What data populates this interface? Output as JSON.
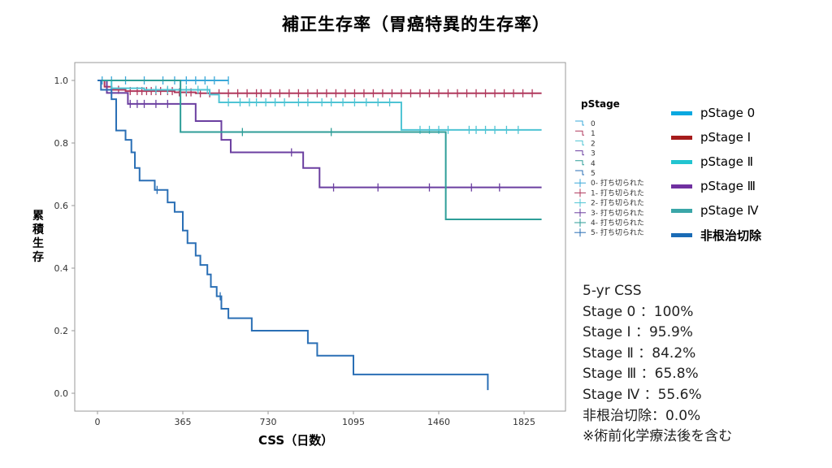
{
  "title": "補正生存率（胃癌特異的生存率）",
  "colors": {
    "s0": "#3aa8d8",
    "s1": "#b0395d",
    "s2": "#4fc4d4",
    "s3": "#6b3fa0",
    "s4": "#2e9e98",
    "s5": "#2a6fb5",
    "legend_s0": "#0aa8e0",
    "legend_s1": "#a61c1c",
    "legend_s2": "#22c4d0",
    "legend_s3": "#7030a0",
    "legend_s4": "#3aa6a8",
    "legend_s5": "#1a6bb5"
  },
  "legend_inner": {
    "title": "pStage",
    "items": [
      "0",
      "1",
      "2",
      "3",
      "4",
      "5",
      "0- 打ち切られた",
      "1- 打ち切られた",
      "2- 打ち切られた",
      "3- 打ち切られた",
      "4- 打ち切られた",
      "5- 打ち切られた"
    ]
  },
  "legend_outer": [
    {
      "label": "pStage 0",
      "color_key": "legend_s0",
      "bold": false
    },
    {
      "label": "pStage Ⅰ",
      "color_key": "legend_s1",
      "bold": false
    },
    {
      "label": "pStage Ⅱ",
      "color_key": "legend_s2",
      "bold": false
    },
    {
      "label": "pStage Ⅲ",
      "color_key": "legend_s3",
      "bold": false
    },
    {
      "label": "pStage Ⅳ",
      "color_key": "legend_s4",
      "bold": false
    },
    {
      "label": "非根治切除",
      "color_key": "legend_s5",
      "bold": true
    }
  ],
  "stats": {
    "header": "5-yr CSS",
    "lines": [
      "Stage 0 ：100%",
      "Stage Ⅰ ：95.9%",
      "Stage Ⅱ ：84.2%",
      "Stage Ⅲ ：65.8%",
      "Stage Ⅳ ：55.6%",
      "非根治切除：0.0%",
      "※術前化学療法後を含む"
    ]
  },
  "chart_data": {
    "type": "line",
    "title": "補正生存率（胃癌特異的生存率）",
    "xlabel": "CSS（日数）",
    "ylabel": "累積生存",
    "xlim": [
      0,
      1900
    ],
    "ylim": [
      0,
      1.0
    ],
    "x_ticks": [
      0,
      365,
      730,
      1095,
      1460,
      1825
    ],
    "y_ticks": [
      0.0,
      0.2,
      0.4,
      0.6,
      0.8,
      1.0
    ],
    "y_tick_labels": [
      "0.0",
      "0.2",
      "0.4",
      "0.6",
      "0.8",
      "1.0"
    ],
    "grid": false,
    "series": [
      {
        "name": "0",
        "key": "s0",
        "steps": [
          [
            0,
            1.0
          ],
          [
            560,
            1.0
          ]
        ],
        "censored": [
          20,
          60,
          120,
          200,
          280,
          330,
          380,
          420,
          460,
          500,
          560
        ]
      },
      {
        "name": "1",
        "key": "s1",
        "steps": [
          [
            0,
            1.0
          ],
          [
            30,
            0.98
          ],
          [
            60,
            0.97
          ],
          [
            120,
            0.966
          ],
          [
            330,
            0.962
          ],
          [
            420,
            0.959
          ],
          [
            1900,
            0.959
          ]
        ],
        "censored": [
          90,
          140,
          170,
          190,
          210,
          230,
          250,
          270,
          300,
          320,
          350,
          380,
          400,
          440,
          480,
          520,
          560,
          600,
          640,
          680,
          700,
          740,
          780,
          820,
          860,
          900,
          940,
          980,
          1020,
          1060,
          1100,
          1140,
          1180,
          1220,
          1260,
          1300,
          1340,
          1380,
          1420,
          1460,
          1500,
          1540,
          1580,
          1620,
          1660,
          1700,
          1740,
          1780,
          1820,
          1860
        ]
      },
      {
        "name": "2",
        "key": "s2",
        "steps": [
          [
            0,
            1.0
          ],
          [
            60,
            0.975
          ],
          [
            200,
            0.97
          ],
          [
            480,
            0.955
          ],
          [
            520,
            0.93
          ],
          [
            1300,
            0.842
          ],
          [
            1900,
            0.842
          ]
        ],
        "censored": [
          250,
          300,
          380,
          430,
          470,
          560,
          610,
          650,
          680,
          720,
          760,
          800,
          860,
          900,
          960,
          1000,
          1050,
          1100,
          1150,
          1200,
          1250,
          1380,
          1420,
          1460,
          1500,
          1590,
          1620,
          1660,
          1700,
          1750,
          1800
        ]
      },
      {
        "name": "3",
        "key": "s3",
        "steps": [
          [
            0,
            1.0
          ],
          [
            40,
            0.96
          ],
          [
            130,
            0.925
          ],
          [
            420,
            0.87
          ],
          [
            530,
            0.81
          ],
          [
            570,
            0.77
          ],
          [
            880,
            0.72
          ],
          [
            950,
            0.658
          ],
          [
            1900,
            0.658
          ]
        ],
        "censored": [
          140,
          170,
          200,
          250,
          300,
          830,
          1010,
          1200,
          1420,
          1600,
          1720
        ]
      },
      {
        "name": "4",
        "key": "s4",
        "steps": [
          [
            0,
            1.0
          ],
          [
            355,
            0.835
          ],
          [
            1490,
            0.556
          ],
          [
            1900,
            0.556
          ]
        ],
        "censored": [
          620,
          1000
        ]
      },
      {
        "name": "5",
        "key": "s5",
        "steps": [
          [
            0,
            1.0
          ],
          [
            15,
            0.97
          ],
          [
            60,
            0.94
          ],
          [
            80,
            0.84
          ],
          [
            120,
            0.81
          ],
          [
            145,
            0.77
          ],
          [
            160,
            0.72
          ],
          [
            180,
            0.68
          ],
          [
            245,
            0.65
          ],
          [
            300,
            0.61
          ],
          [
            330,
            0.58
          ],
          [
            365,
            0.52
          ],
          [
            385,
            0.48
          ],
          [
            420,
            0.44
          ],
          [
            440,
            0.41
          ],
          [
            470,
            0.38
          ],
          [
            485,
            0.34
          ],
          [
            510,
            0.31
          ],
          [
            530,
            0.27
          ],
          [
            560,
            0.24
          ],
          [
            660,
            0.2
          ],
          [
            900,
            0.16
          ],
          [
            940,
            0.12
          ],
          [
            1095,
            0.06
          ],
          [
            1670,
            0.06
          ],
          [
            1670,
            0.01
          ]
        ],
        "censored": [
          255,
          525
        ]
      }
    ]
  }
}
